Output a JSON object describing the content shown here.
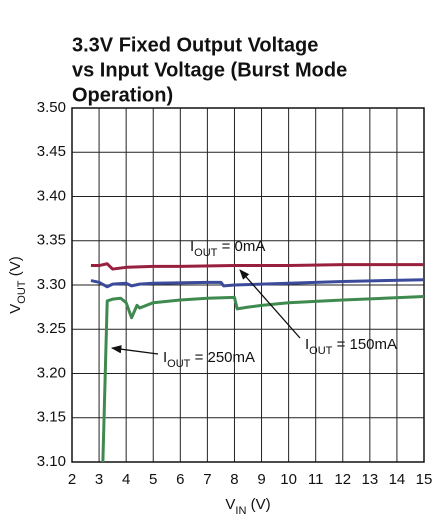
{
  "chart_data": {
    "type": "line",
    "title": [
      "3.3V Fixed Output Voltage",
      "vs Input Voltage (Burst Mode",
      "Operation)"
    ],
    "xlabel": {
      "main": "V",
      "sub": "IN",
      "rest": " (V)"
    },
    "ylabel": {
      "main": "V",
      "sub": "OUT",
      "rest": " (V)"
    },
    "xlim": [
      2,
      15
    ],
    "xticks": [
      2,
      3,
      4,
      5,
      6,
      7,
      8,
      9,
      10,
      11,
      12,
      13,
      14,
      15
    ],
    "ylim": [
      3.1,
      3.5
    ],
    "yticks": [
      {
        "value": 3.1,
        "label": "3.10"
      },
      3.15,
      {
        "value": 3.2,
        "label": "3.20"
      },
      3.25,
      {
        "value": 3.3,
        "label": "3.30"
      },
      3.35,
      {
        "value": 3.4,
        "label": "3.40"
      },
      3.45,
      {
        "value": 3.5,
        "label": "3.50"
      }
    ],
    "grid": true,
    "series": [
      {
        "name": {
          "main": "I",
          "sub": "OUT",
          "rest": " = 0mA"
        },
        "color": "#98203e",
        "x": [
          2.7,
          3.0,
          3.3,
          3.5,
          4.0,
          5.0,
          6.0,
          8.0,
          10.0,
          12.0,
          15.0
        ],
        "values": [
          3.322,
          3.322,
          3.324,
          3.318,
          3.32,
          3.321,
          3.321,
          3.322,
          3.322,
          3.323,
          3.323
        ]
      },
      {
        "name": {
          "main": "I",
          "sub": "OUT",
          "rest": " = 150mA"
        },
        "color": "#3b4b9a",
        "x": [
          2.7,
          3.0,
          3.3,
          3.5,
          4.0,
          4.2,
          4.5,
          5.0,
          7.0,
          7.5,
          7.6,
          8.0,
          9.0,
          10.0,
          12.0,
          15.0
        ],
        "values": [
          3.305,
          3.303,
          3.298,
          3.301,
          3.302,
          3.299,
          3.301,
          3.302,
          3.303,
          3.303,
          3.299,
          3.3,
          3.301,
          3.302,
          3.304,
          3.306
        ]
      },
      {
        "name": {
          "main": "I",
          "sub": "OUT",
          "rest": " = 250mA"
        },
        "color": "#3f8a4f",
        "x": [
          3.14,
          3.3,
          3.5,
          3.8,
          4.0,
          4.2,
          4.4,
          4.5,
          5.0,
          6.0,
          7.0,
          8.0,
          8.1,
          8.5,
          9.0,
          10.0,
          12.0,
          15.0
        ],
        "values": [
          3.1,
          3.282,
          3.284,
          3.285,
          3.28,
          3.263,
          3.277,
          3.274,
          3.28,
          3.283,
          3.285,
          3.286,
          3.273,
          3.275,
          3.277,
          3.28,
          3.283,
          3.287
        ]
      }
    ]
  }
}
